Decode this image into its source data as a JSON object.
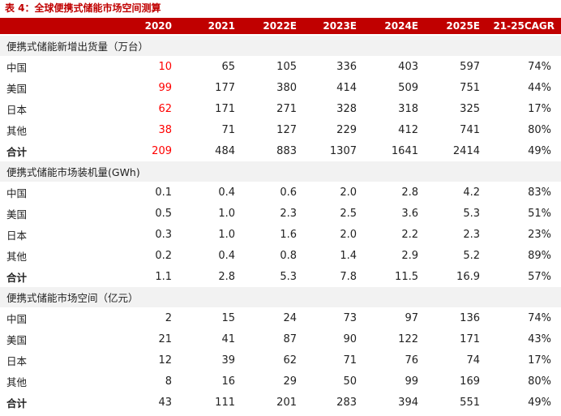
{
  "title": "表 4：全球便携式储能市场空间测算",
  "columns": [
    "2020",
    "2021",
    "2022E",
    "2023E",
    "2024E",
    "2025E",
    "21-25CAGR"
  ],
  "sections": [
    {
      "label": "便携式储能新增出货量（万台）",
      "rows": [
        {
          "label": "中国",
          "values": [
            "10",
            "65",
            "105",
            "336",
            "403",
            "597",
            "74%"
          ]
        },
        {
          "label": "美国",
          "values": [
            "99",
            "177",
            "380",
            "414",
            "509",
            "751",
            "44%"
          ]
        },
        {
          "label": "日本",
          "values": [
            "62",
            "171",
            "271",
            "328",
            "318",
            "325",
            "17%"
          ]
        },
        {
          "label": "其他",
          "values": [
            "38",
            "71",
            "127",
            "229",
            "412",
            "741",
            "80%"
          ]
        },
        {
          "label": "合计",
          "values": [
            "209",
            "484",
            "883",
            "1307",
            "1641",
            "2414",
            "49%"
          ]
        }
      ]
    },
    {
      "label": "便携式储能市场装机量(GWh)",
      "rows": [
        {
          "label": "中国",
          "values": [
            "0.1",
            "0.4",
            "0.6",
            "2.0",
            "2.8",
            "4.2",
            "83%"
          ]
        },
        {
          "label": "美国",
          "values": [
            "0.5",
            "1.0",
            "2.3",
            "2.5",
            "3.6",
            "5.3",
            "51%"
          ]
        },
        {
          "label": "日本",
          "values": [
            "0.3",
            "1.0",
            "1.6",
            "2.0",
            "2.2",
            "2.3",
            "23%"
          ]
        },
        {
          "label": "其他",
          "values": [
            "0.2",
            "0.4",
            "0.8",
            "1.4",
            "2.9",
            "5.2",
            "89%"
          ]
        },
        {
          "label": "合计",
          "values": [
            "1.1",
            "2.8",
            "5.3",
            "7.8",
            "11.5",
            "16.9",
            "57%"
          ]
        }
      ]
    },
    {
      "label": "便携式储能市场空间（亿元）",
      "rows": [
        {
          "label": "中国",
          "values": [
            "2",
            "15",
            "24",
            "73",
            "97",
            "136",
            "74%"
          ]
        },
        {
          "label": "美国",
          "values": [
            "21",
            "41",
            "87",
            "90",
            "122",
            "171",
            "43%"
          ]
        },
        {
          "label": "日本",
          "values": [
            "12",
            "39",
            "62",
            "71",
            "76",
            "74",
            "17%"
          ]
        },
        {
          "label": "其他",
          "values": [
            "8",
            "16",
            "29",
            "50",
            "99",
            "169",
            "80%"
          ]
        },
        {
          "label": "合计",
          "values": [
            "43",
            "111",
            "201",
            "283",
            "394",
            "551",
            "49%"
          ]
        }
      ]
    }
  ],
  "colors": {
    "accent": "#c00000",
    "highlight": "#ff0000",
    "section_bg": "#f2f2f2"
  }
}
